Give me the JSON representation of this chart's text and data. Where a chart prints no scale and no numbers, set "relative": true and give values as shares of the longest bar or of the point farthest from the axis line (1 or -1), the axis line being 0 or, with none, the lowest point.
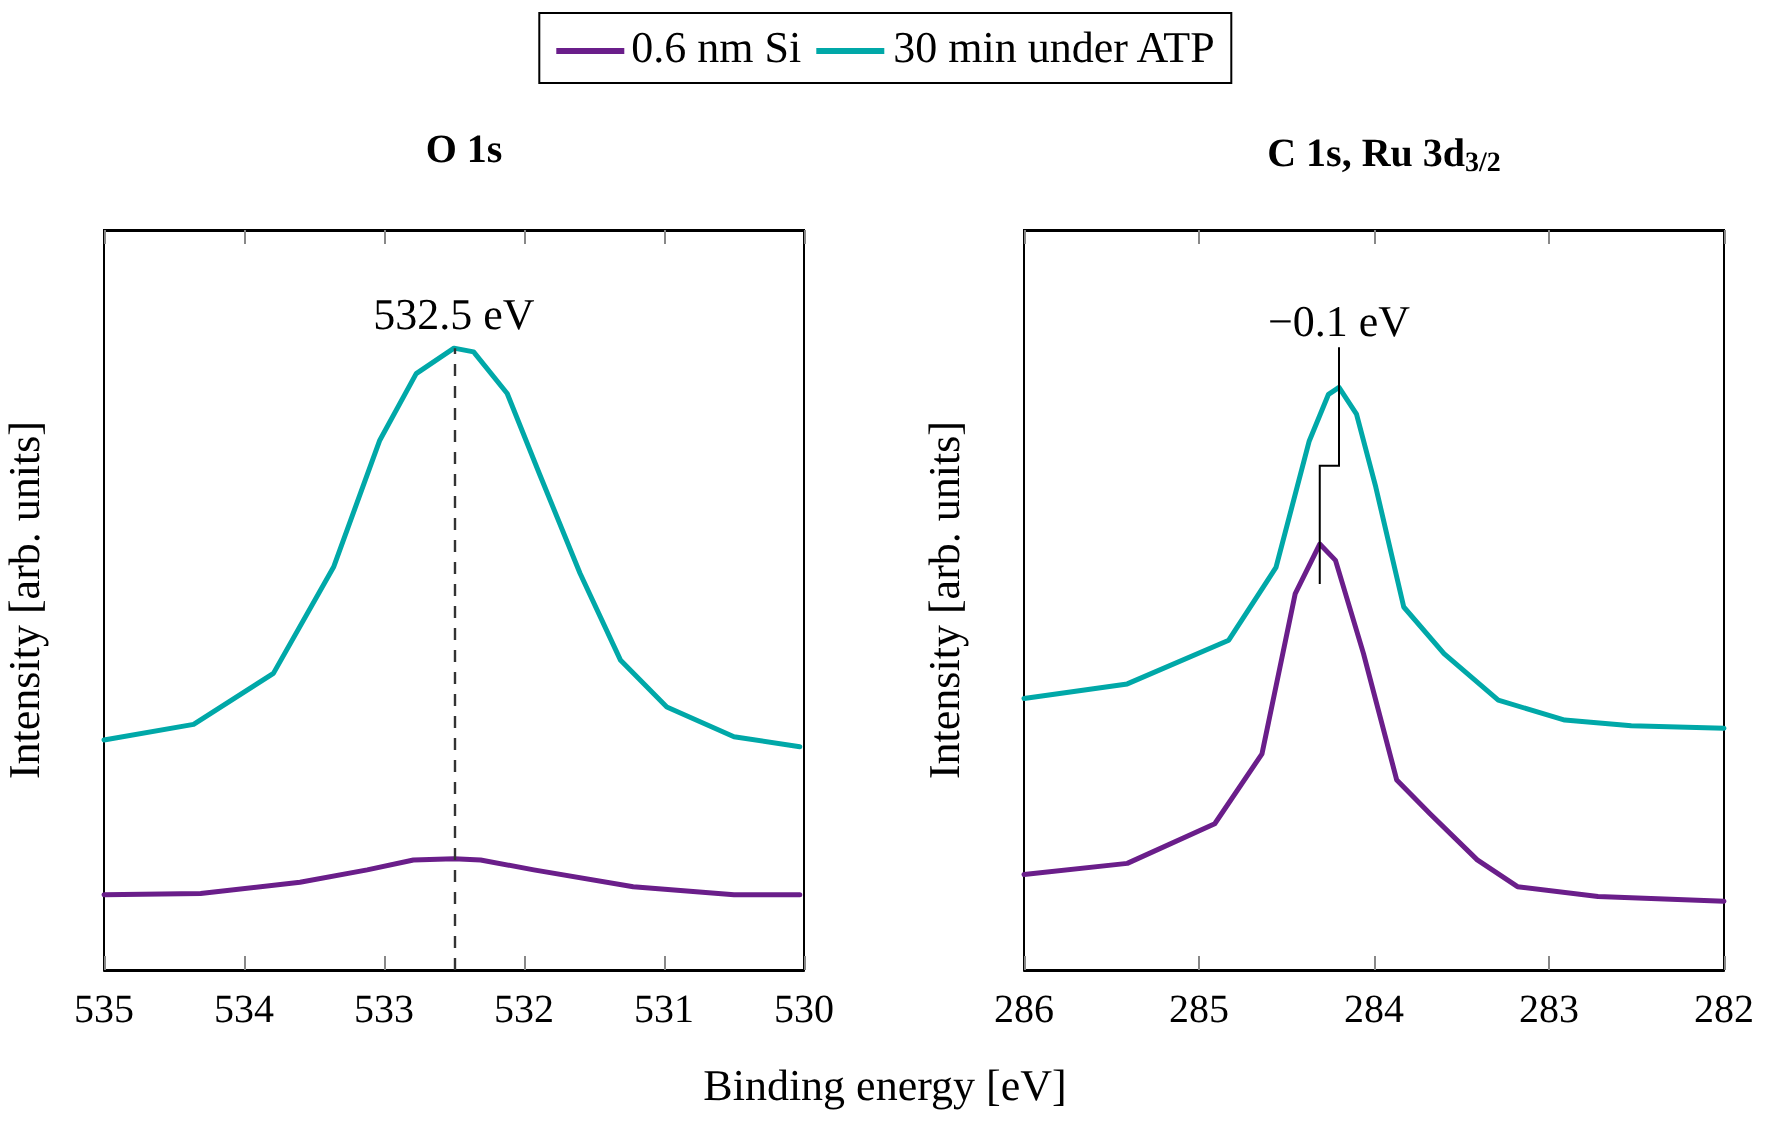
{
  "chart_data": [
    {
      "type": "line",
      "title": "O 1s",
      "xlabel": "Binding energy [eV]",
      "ylabel": "Intensity [arb. units]",
      "relative": true,
      "legend": "top",
      "xlim": [
        535,
        530
      ],
      "xticks": [
        535,
        534,
        533,
        532,
        531,
        530
      ],
      "grid": false,
      "marker": "none",
      "line_style": "solid",
      "ref_lines": [
        {
          "axis": "x",
          "value": 532.5,
          "label": "532.5 eV",
          "line_style": "dashed",
          "color": "#333333"
        }
      ],
      "series": [
        {
          "name": "0.6 nm Si",
          "color": "#6a1e8a",
          "x": [
            535,
            534.31,
            533.6,
            533.12,
            532.79,
            532.5,
            532.31,
            531.93,
            531.22,
            530.5,
            530.03
          ],
          "values": [
            0.121,
            0.123,
            0.141,
            0.161,
            0.177,
            0.179,
            0.177,
            0.161,
            0.134,
            0.121,
            0.121
          ]
        },
        {
          "name": "30 min under ATP",
          "color": "#00a8a8",
          "x": [
            535,
            534.36,
            533.79,
            533.36,
            533.03,
            532.77,
            532.5,
            532.36,
            532.12,
            531.89,
            531.6,
            531.31,
            530.98,
            530.5,
            530.03
          ],
          "values": [
            0.37,
            0.395,
            0.477,
            0.648,
            0.852,
            0.959,
            1.0,
            0.994,
            0.927,
            0.798,
            0.638,
            0.498,
            0.423,
            0.375,
            0.359
          ]
        }
      ]
    },
    {
      "type": "line",
      "title": "C 1s, Ru 3d$_{3/2}$",
      "ylabel": "Intensity [arb. units]",
      "relative": true,
      "legend": false,
      "xlim": [
        286,
        282
      ],
      "xticks": [
        286,
        285,
        284,
        283,
        282
      ],
      "grid": false,
      "marker": "none",
      "line_style": "solid",
      "annotations": [
        "−0.1 eV"
      ],
      "series": [
        {
          "color": "#6a1e8a",
          "x": [
            286,
            285.41,
            284.91,
            284.64,
            284.45,
            284.31,
            284.22,
            284.06,
            283.87,
            283.68,
            283.41,
            283.18,
            282.72,
            282
          ],
          "values": [
            0.164,
            0.183,
            0.251,
            0.371,
            0.646,
            0.731,
            0.703,
            0.543,
            0.326,
            0.268,
            0.189,
            0.143,
            0.126,
            0.118
          ]
        },
        {
          "color": "#00a8a8",
          "x": [
            286,
            285.41,
            284.83,
            284.56,
            284.37,
            284.26,
            284.2,
            284.1,
            283.99,
            283.83,
            283.6,
            283.29,
            282.91,
            282.53,
            282
          ],
          "values": [
            0.466,
            0.491,
            0.566,
            0.691,
            0.908,
            0.988,
            1.0,
            0.954,
            0.829,
            0.623,
            0.543,
            0.463,
            0.429,
            0.419,
            0.415
          ]
        }
      ]
    }
  ]
}
